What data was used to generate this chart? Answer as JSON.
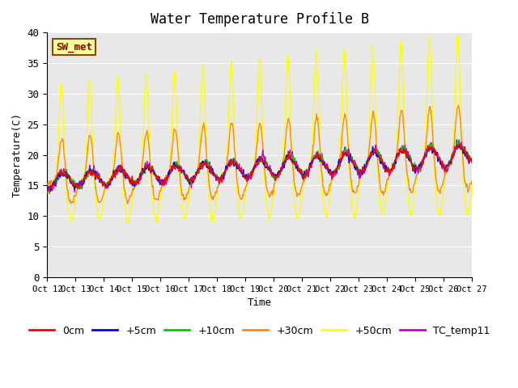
{
  "title": "Water Temperature Profile B",
  "xlabel": "Time",
  "ylabel": "Temperature(C)",
  "ylim": [
    0,
    40
  ],
  "yticks": [
    0,
    5,
    10,
    15,
    20,
    25,
    30,
    35,
    40
  ],
  "xtick_labels": [
    "Oct 12",
    "Oct 13",
    "Oct 14",
    "Oct 15",
    "Oct 16",
    "Oct 17",
    "Oct 18",
    "Oct 19",
    "Oct 20",
    "Oct 21",
    "Oct 22",
    "Oct 23",
    "Oct 24",
    "Oct 25",
    "Oct 26",
    "Oct 27"
  ],
  "annotation_text": "SW_met",
  "annotation_color": "#8B0000",
  "annotation_bg": "#FFFF99",
  "annotation_border": "#8B4513",
  "series_labels": [
    "0cm",
    "+5cm",
    "+10cm",
    "+30cm",
    "+50cm",
    "TC_temp11"
  ],
  "series_colors": [
    "#FF0000",
    "#0000FF",
    "#00CC00",
    "#FF8C00",
    "#FFFF00",
    "#CC00CC"
  ],
  "bg_color": "#E8E8E8",
  "grid_color": "#FFFFFF",
  "title_fontsize": 12,
  "n_days": 15,
  "n_per_day": 48
}
